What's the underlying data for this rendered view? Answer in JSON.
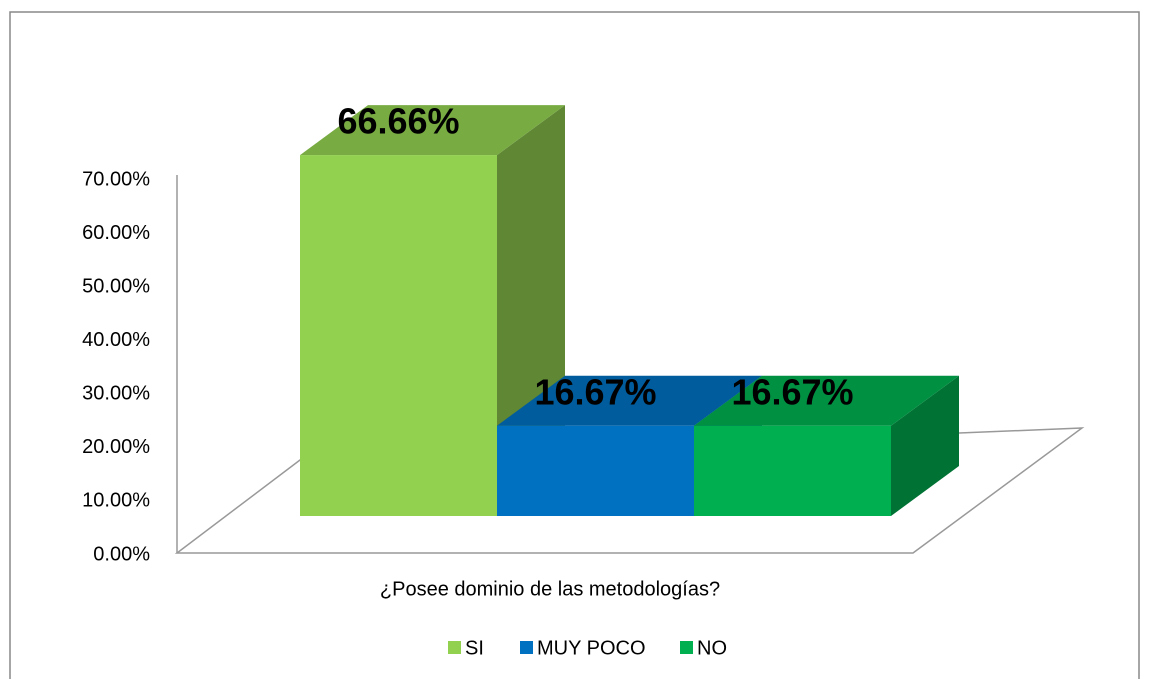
{
  "chart_data": {
    "type": "bar3d",
    "categories": [
      "¿Posee dominio de las metodologías?"
    ],
    "series": [
      {
        "name": "SI",
        "color": "#92d050",
        "values": [
          66.66
        ],
        "value_labels": [
          "66.66%"
        ]
      },
      {
        "name": "MUY POCO",
        "color": "#0070c0",
        "values": [
          16.67
        ],
        "value_labels": [
          "16.67%"
        ]
      },
      {
        "name": "NO",
        "color": "#00b050",
        "values": [
          16.67
        ],
        "value_labels": [
          "16.67%"
        ]
      }
    ],
    "ylim": [
      0,
      70
    ],
    "yticks": [
      {
        "value": 0,
        "label": "0.00%"
      },
      {
        "value": 10,
        "label": "10.00%"
      },
      {
        "value": 20,
        "label": "20.00%"
      },
      {
        "value": 30,
        "label": "30.00%"
      },
      {
        "value": 40,
        "label": "40.00%"
      },
      {
        "value": 50,
        "label": "50.00%"
      },
      {
        "value": 60,
        "label": "60.00%"
      },
      {
        "value": 70,
        "label": "70.00%"
      }
    ],
    "grid": false,
    "legend": "bottom"
  }
}
